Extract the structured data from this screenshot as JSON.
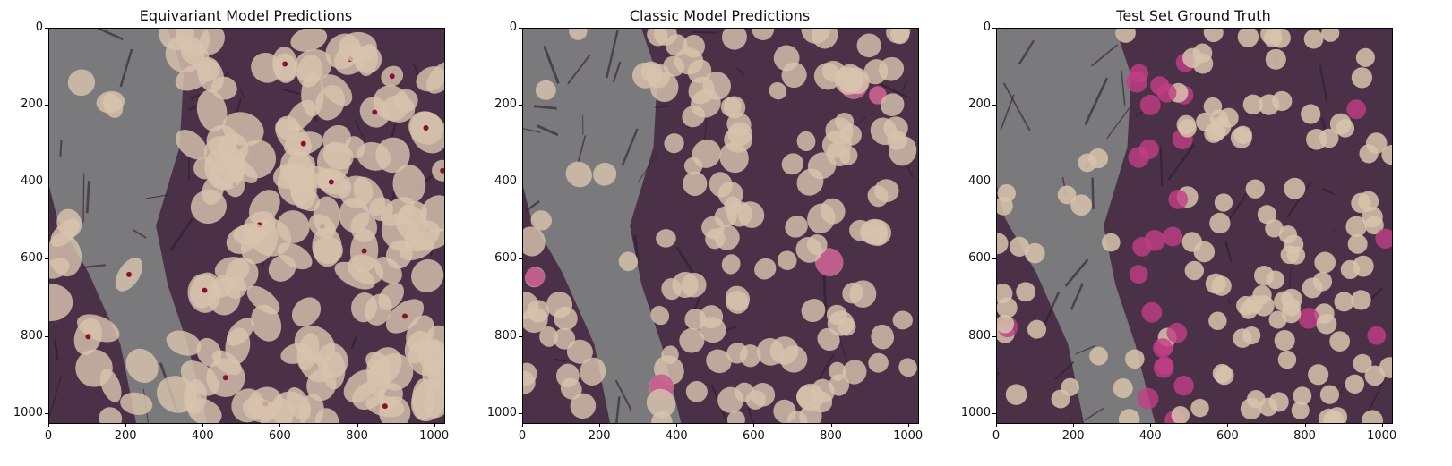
{
  "figure": {
    "panels": [
      {
        "title": "Equivariant Model Predictions",
        "mode": "pred_equiv"
      },
      {
        "title": "Classic Model Predictions",
        "mode": "pred_classic"
      },
      {
        "title": "Test Set Ground Truth",
        "mode": "ground_truth"
      }
    ],
    "x_ticks": [
      "0",
      "200",
      "400",
      "600",
      "800",
      "1000"
    ],
    "y_ticks": [
      "0",
      "200",
      "400",
      "600",
      "800",
      "1000"
    ],
    "tick_values": [
      0,
      200,
      400,
      600,
      800,
      1000
    ],
    "image_extent": [
      1024,
      1024
    ],
    "colors": {
      "background_gray": "#7a7a7c",
      "tissue_purple": "#4a3148",
      "nucleus_beige": "#d8c3ad",
      "highlight_pink": "#c03f85"
    }
  }
}
